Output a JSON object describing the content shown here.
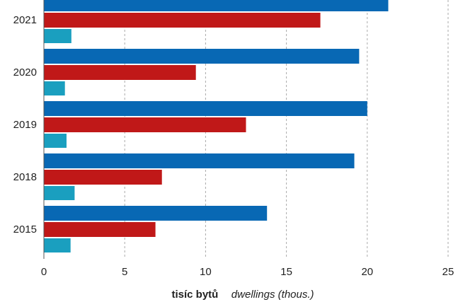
{
  "chart_data": {
    "type": "bar",
    "orientation": "horizontal",
    "categories": [
      "2021",
      "2020",
      "2019",
      "2018",
      "2015"
    ],
    "series": [
      {
        "values": [
          21.3,
          19.5,
          20.0,
          19.2,
          13.8
        ],
        "color": "#0868b4"
      },
      {
        "values": [
          17.1,
          9.4,
          12.5,
          7.3,
          6.9
        ],
        "color": "#c01818"
      },
      {
        "values": [
          1.7,
          1.3,
          1.4,
          1.9,
          1.65
        ],
        "color": "#1a9fbf"
      }
    ],
    "xlim": [
      0,
      25
    ],
    "xticks": [
      "0",
      "5",
      "10",
      "15",
      "20",
      "25"
    ],
    "grid": true,
    "xlabel": {
      "main": "tisíc bytů",
      "sub": "dwellings (thous.)"
    }
  }
}
